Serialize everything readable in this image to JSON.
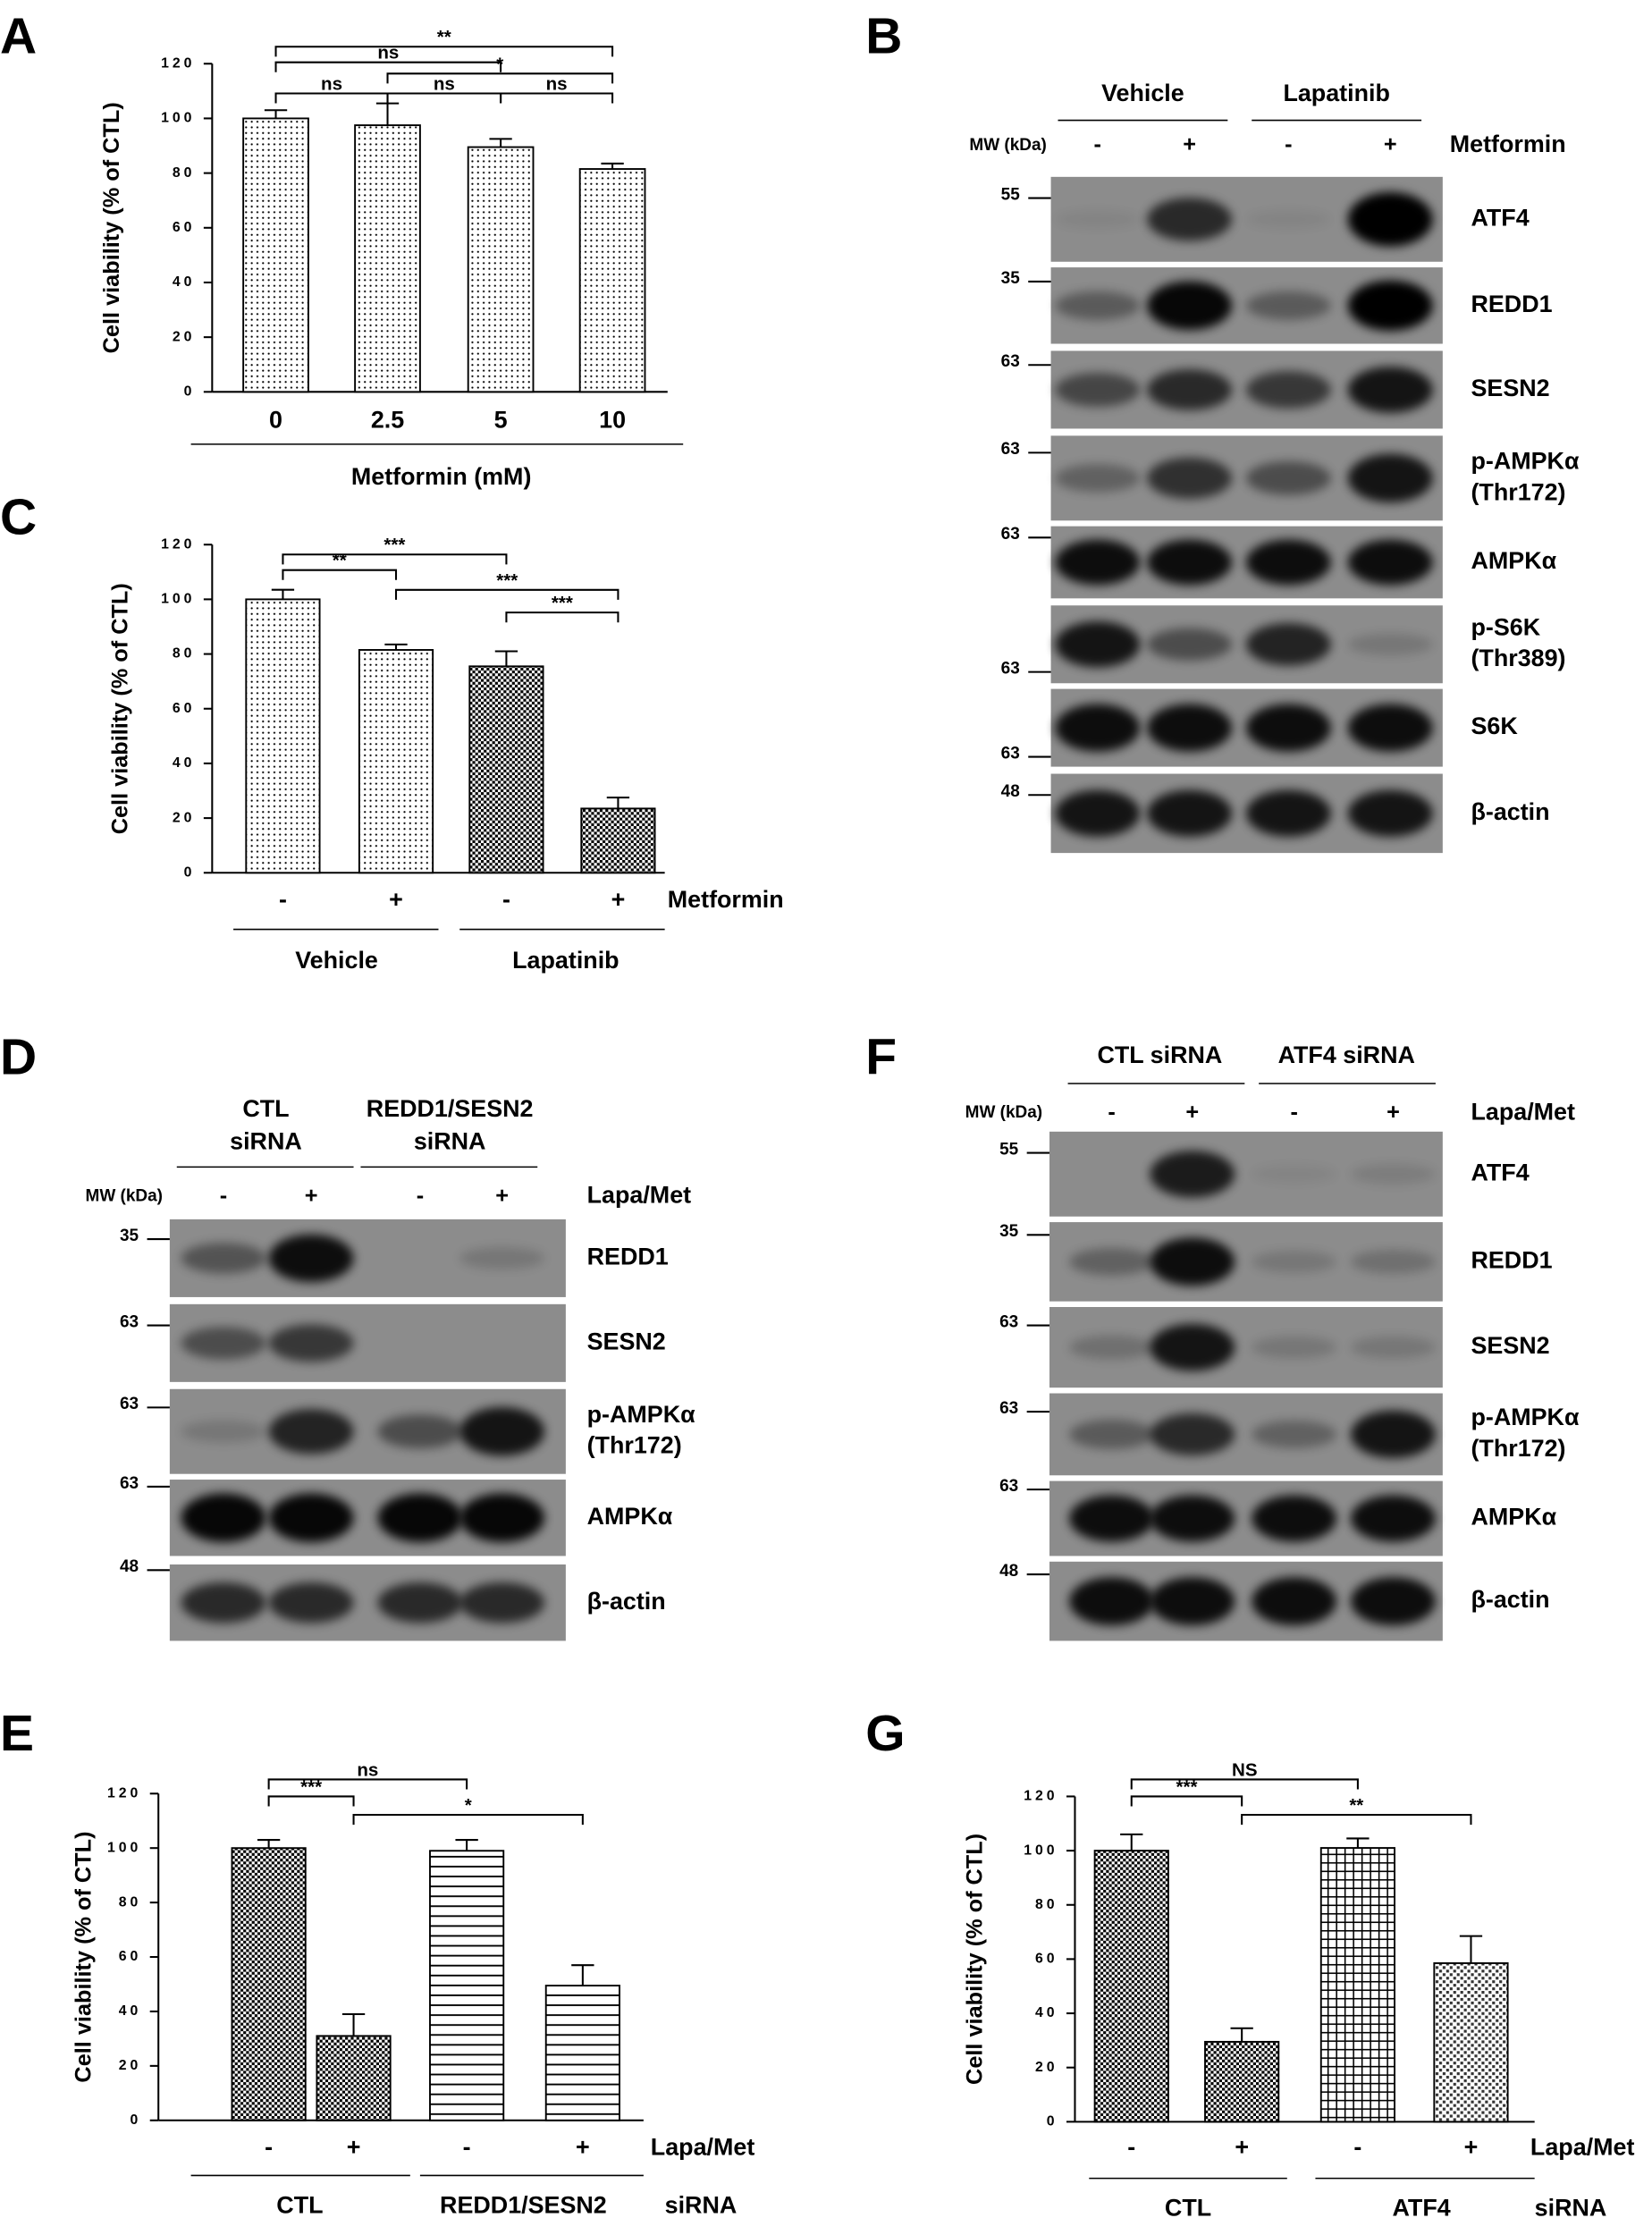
{
  "chart_data": [
    {
      "type": "bar",
      "panel": "A",
      "categories": [
        "0",
        "2.5",
        "5",
        "10"
      ],
      "values": [
        100,
        97.5,
        89.5,
        81.5
      ],
      "errors": [
        3,
        8,
        3,
        2
      ],
      "ylim": [
        0,
        120
      ],
      "yticks": [
        0,
        20,
        40,
        60,
        80,
        100,
        120
      ],
      "ylabel": "Cell viability (% of CTL)",
      "xlabel": "Metformin (mM)",
      "annotations": [
        "**",
        "ns",
        "*",
        "ns",
        "ns",
        "ns"
      ]
    },
    {
      "type": "bar",
      "panel": "C",
      "categories": [
        "-",
        "+",
        "-",
        "+"
      ],
      "values": [
        100,
        81.5,
        75.5,
        23.5
      ],
      "errors": [
        3.5,
        2,
        5.5,
        4
      ],
      "ylim": [
        0,
        120
      ],
      "yticks": [
        0,
        20,
        40,
        60,
        80,
        100,
        120
      ],
      "ylabel": "Cell viability (% of CTL)",
      "factor": "Metformin",
      "groups": [
        "Vehicle",
        "Lapatinib"
      ],
      "annotations": [
        "***",
        "**",
        "***",
        "***"
      ]
    },
    {
      "type": "bar",
      "panel": "E",
      "categories": [
        "-",
        "+",
        "-",
        "+"
      ],
      "values": [
        100,
        31,
        99,
        49.5
      ],
      "errors": [
        3,
        8,
        4,
        7.5
      ],
      "ylim": [
        0,
        120
      ],
      "yticks": [
        0,
        20,
        40,
        60,
        80,
        100,
        120
      ],
      "ylabel": "Cell viability (% of CTL)",
      "factor": "Lapa/Met",
      "groups": [
        "CTL",
        "REDD1/SESN2"
      ],
      "group_suffix": "siRNA",
      "annotations": [
        "ns",
        "***",
        "*"
      ]
    },
    {
      "type": "bar",
      "panel": "G",
      "categories": [
        "-",
        "+",
        "-",
        "+"
      ],
      "values": [
        100,
        29.5,
        101,
        58.5
      ],
      "errors": [
        6,
        5,
        3.5,
        10
      ],
      "ylim": [
        0,
        120
      ],
      "yticks": [
        0,
        20,
        40,
        60,
        80,
        100,
        120
      ],
      "ylabel": "Cell viability (% of CTL)",
      "factor": "Lapa/Met",
      "groups": [
        "CTL",
        "ATF4"
      ],
      "group_suffix": "siRNA",
      "annotations": [
        "NS",
        "***",
        "**"
      ]
    }
  ],
  "blots": [
    {
      "panel": "B",
      "groups": [
        [
          "Vehicle"
        ],
        [
          "Lapatinib"
        ]
      ],
      "mw_header": "MW (kDa)",
      "lanes": [
        "-",
        "+",
        "-",
        "+"
      ],
      "treatment": "Metformin",
      "rows": [
        {
          "label": [
            "ATF4"
          ],
          "mw": 55
        },
        {
          "label": [
            "REDD1"
          ],
          "mw": 35
        },
        {
          "label": [
            "SESN2"
          ],
          "mw": 63
        },
        {
          "label": [
            "p-AMPKα",
            "(Thr172)"
          ],
          "mw": 63
        },
        {
          "label": [
            "AMPKα"
          ],
          "mw": 63
        },
        {
          "label": [
            "p-S6K",
            "(Thr389)"
          ],
          "mw": 63
        },
        {
          "label": [
            "S6K"
          ],
          "mw": 63
        },
        {
          "label": [
            "β-actin"
          ],
          "mw": 48
        }
      ]
    },
    {
      "panel": "D",
      "groups": [
        [
          "CTL",
          "siRNA"
        ],
        [
          "REDD1/SESN2",
          "siRNA"
        ]
      ],
      "mw_header": "MW (kDa)",
      "lanes": [
        "-",
        "+",
        "-",
        "+"
      ],
      "treatment": "Lapa/Met",
      "rows": [
        {
          "label": [
            "REDD1"
          ],
          "mw": 35
        },
        {
          "label": [
            "SESN2"
          ],
          "mw": 63
        },
        {
          "label": [
            "p-AMPKα",
            "(Thr172)"
          ],
          "mw": 63
        },
        {
          "label": [
            "AMPKα"
          ],
          "mw": 63
        },
        {
          "label": [
            "β-actin"
          ],
          "mw": 48
        }
      ]
    },
    {
      "panel": "F",
      "groups": [
        [
          "CTL siRNA"
        ],
        [
          "ATF4 siRNA"
        ]
      ],
      "mw_header": "MW (kDa)",
      "lanes": [
        "-",
        "+",
        "-",
        "+"
      ],
      "treatment": "Lapa/Met",
      "rows": [
        {
          "label": [
            "ATF4"
          ],
          "mw": 55
        },
        {
          "label": [
            "REDD1"
          ],
          "mw": 35
        },
        {
          "label": [
            "SESN2"
          ],
          "mw": 63
        },
        {
          "label": [
            "p-AMPKα",
            "(Thr172)"
          ],
          "mw": 63
        },
        {
          "label": [
            "AMPKα"
          ],
          "mw": 63
        },
        {
          "label": [
            "β-actin"
          ],
          "mw": 48
        }
      ]
    }
  ]
}
